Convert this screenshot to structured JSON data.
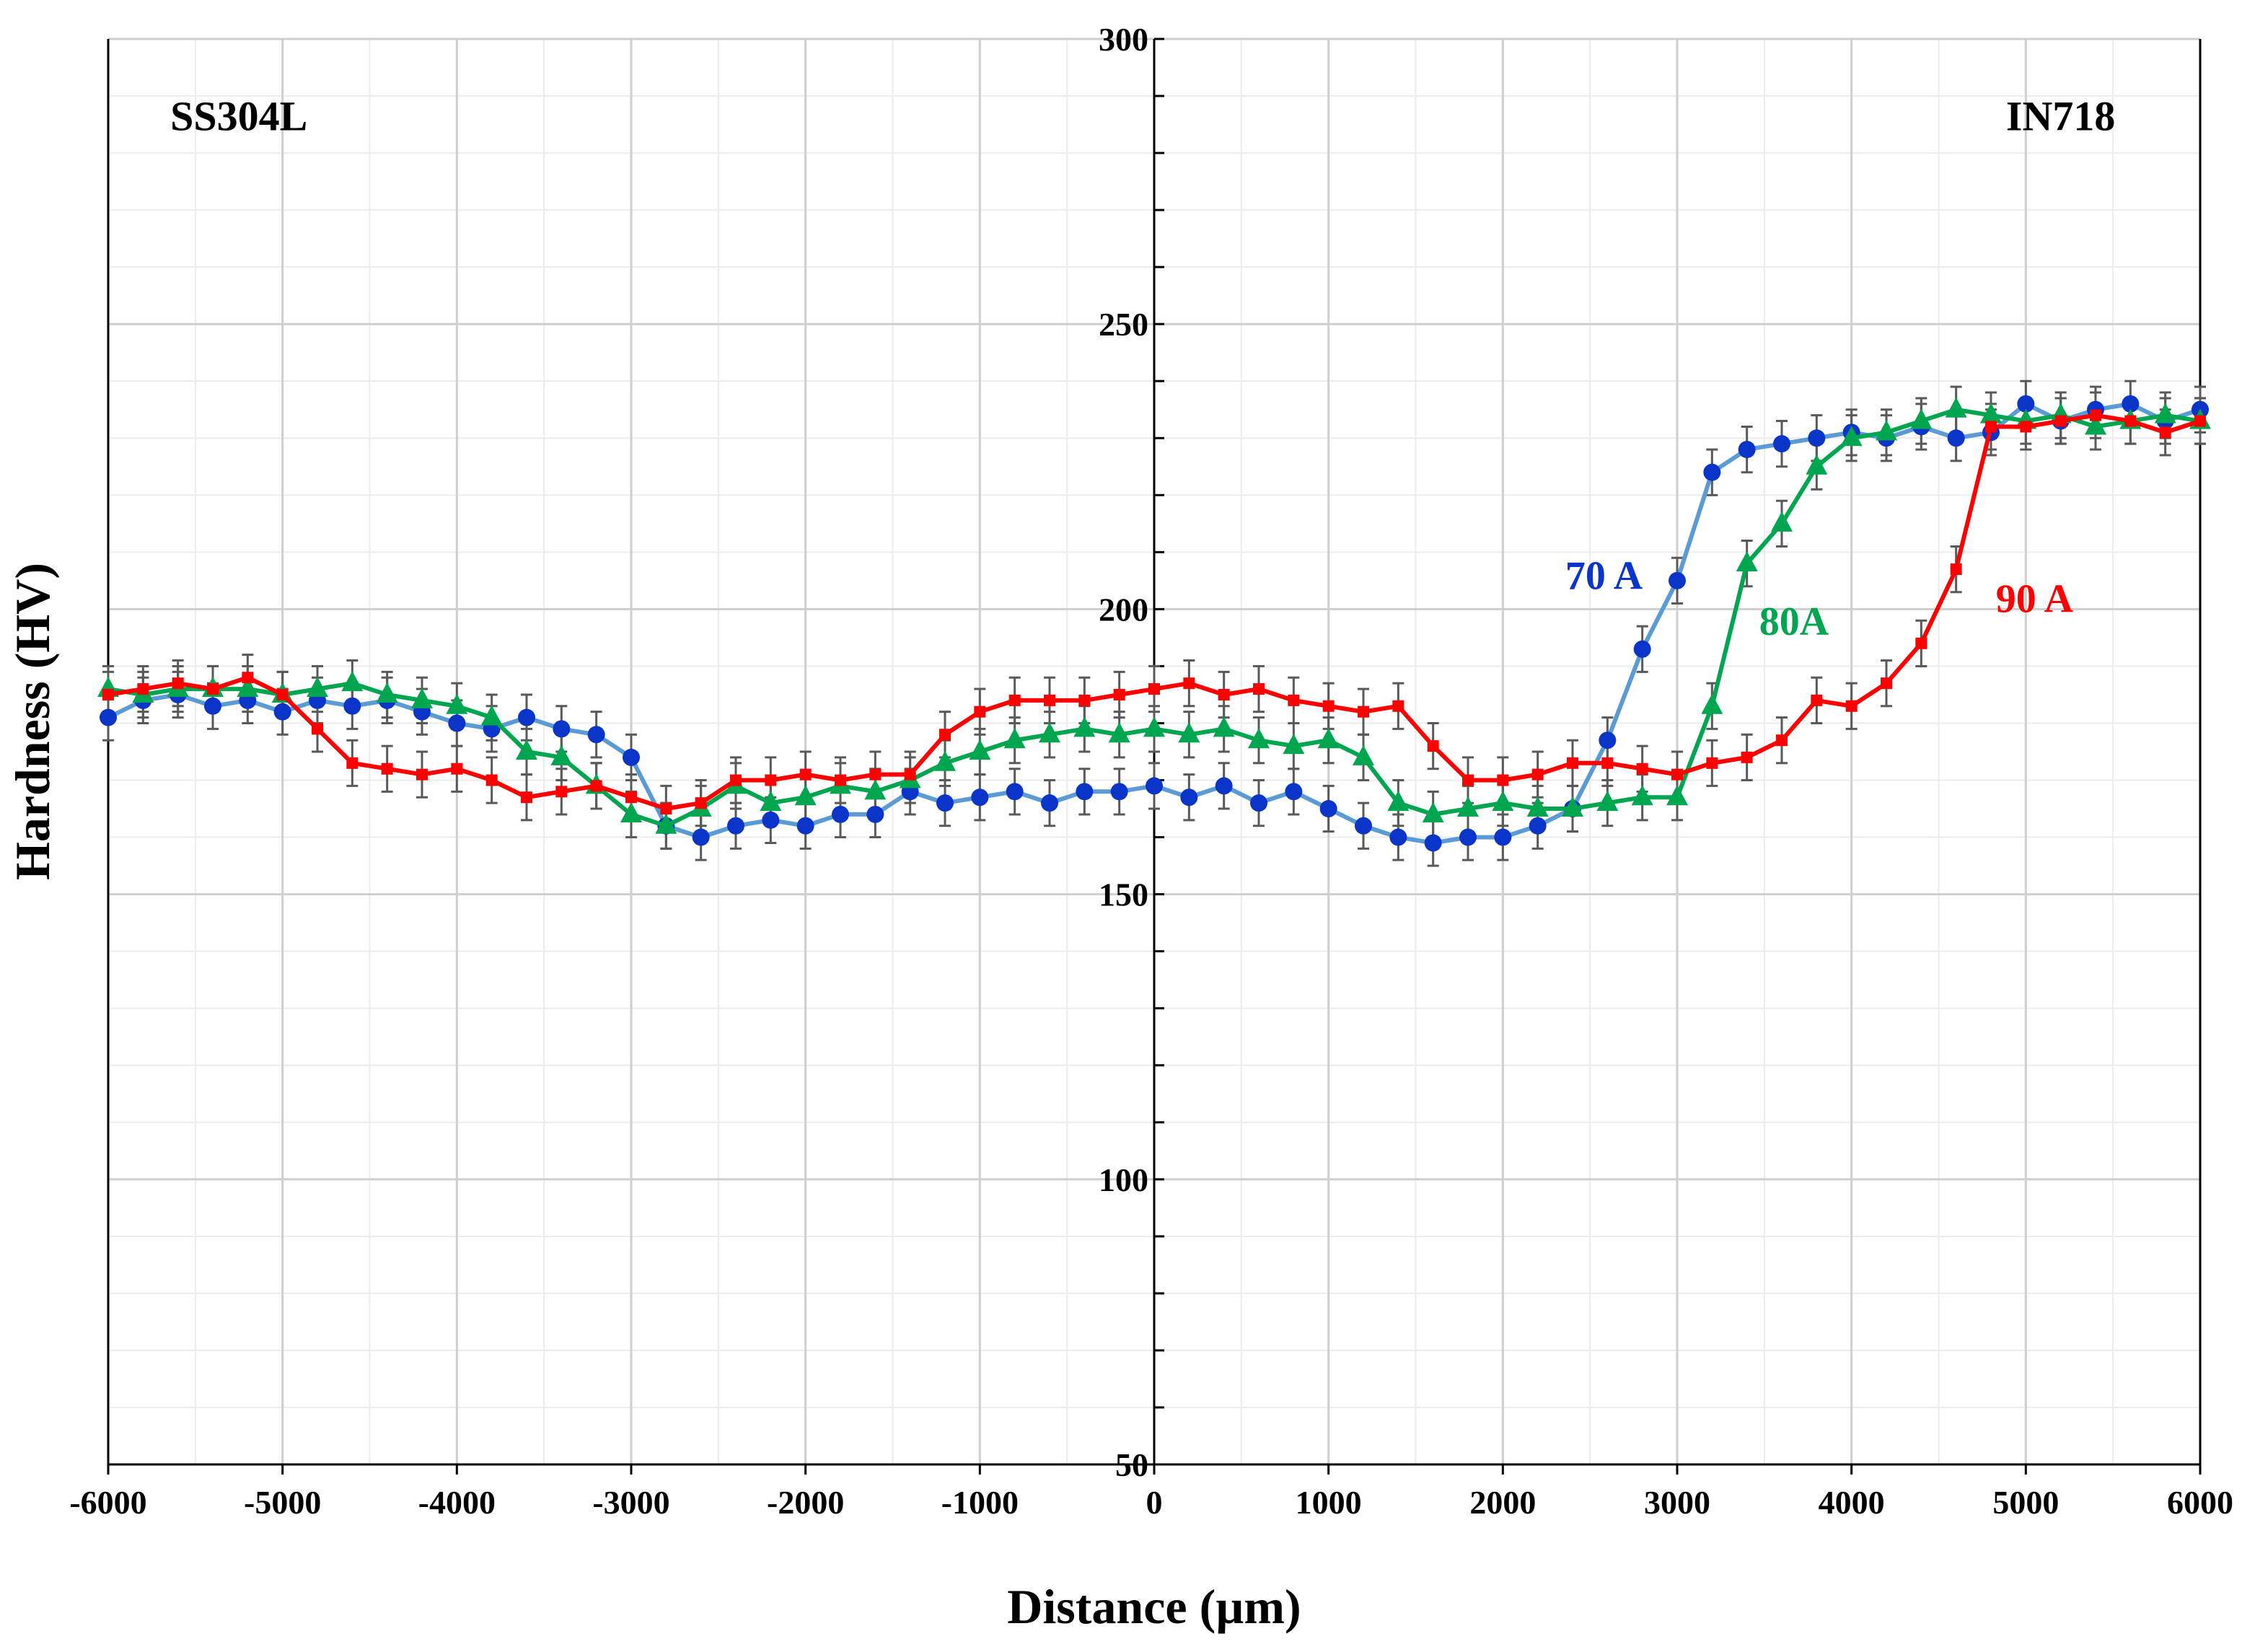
{
  "chart_data": {
    "type": "line",
    "title": "",
    "xlabel": "Distance (µm)",
    "ylabel": "Hardness (HV)",
    "xlim": [
      -6000,
      6000
    ],
    "ylim": [
      50,
      300
    ],
    "x_ticks": [
      -6000,
      -5000,
      -4000,
      -3000,
      -2000,
      -1000,
      0,
      1000,
      2000,
      3000,
      4000,
      5000,
      6000
    ],
    "y_ticks": [
      50,
      100,
      150,
      200,
      250,
      300
    ],
    "grid": true,
    "annotations": [
      {
        "id": "ss304l",
        "text": "SS304L",
        "x": -5250,
        "y": 284,
        "color": "#000000"
      },
      {
        "id": "in718",
        "text": "IN718",
        "x": 5200,
        "y": 284,
        "color": "#000000"
      }
    ],
    "x": [
      -6000,
      -5800,
      -5600,
      -5400,
      -5200,
      -5000,
      -4800,
      -4600,
      -4400,
      -4200,
      -4000,
      -3800,
      -3600,
      -3400,
      -3200,
      -3000,
      -2800,
      -2600,
      -2400,
      -2200,
      -2000,
      -1800,
      -1600,
      -1400,
      -1200,
      -1000,
      -800,
      -600,
      -400,
      -200,
      0,
      200,
      400,
      600,
      800,
      1000,
      1200,
      1400,
      1600,
      1800,
      2000,
      2200,
      2400,
      2600,
      2800,
      3000,
      3200,
      3400,
      3600,
      3800,
      4000,
      4200,
      4400,
      4600,
      4800,
      5000,
      5200,
      5400,
      5600,
      5800,
      6000
    ],
    "series": [
      {
        "name": "70 A",
        "label_text": "70 A",
        "label_x": 2580,
        "label_y": 203.5,
        "color": "#0a35c8",
        "line_color": "#5b9bd5",
        "marker": "circle",
        "values": [
          181,
          184,
          185,
          183,
          184,
          182,
          184,
          183,
          184,
          182,
          180,
          179,
          181,
          179,
          178,
          174,
          162,
          160,
          162,
          163,
          162,
          164,
          164,
          168,
          166,
          167,
          168,
          166,
          168,
          168,
          169,
          167,
          169,
          166,
          168,
          165,
          162,
          160,
          159,
          160,
          160,
          162,
          165,
          177,
          193,
          205,
          224,
          228,
          229,
          230,
          231,
          230,
          232,
          230,
          231,
          236,
          233,
          235,
          236,
          233,
          235
        ]
      },
      {
        "name": "80A",
        "label_text": "80A",
        "label_x": 3670,
        "label_y": 195.5,
        "color": "#00a550",
        "line_color": "#00a550",
        "marker": "triangle",
        "values": [
          186,
          185,
          186,
          186,
          186,
          185,
          186,
          187,
          185,
          184,
          183,
          181,
          175,
          174,
          169,
          164,
          162,
          165,
          169,
          166,
          167,
          169,
          168,
          170,
          173,
          175,
          177,
          178,
          179,
          178,
          179,
          178,
          179,
          177,
          176,
          177,
          174,
          166,
          164,
          165,
          166,
          165,
          165,
          166,
          167,
          167,
          183,
          208,
          215,
          225,
          230,
          231,
          233,
          235,
          234,
          233,
          234,
          232,
          233,
          234,
          233
        ]
      },
      {
        "name": "90 A",
        "label_text": "90 A",
        "label_x": 5050,
        "label_y": 199.5,
        "color": "#ff0000",
        "line_color": "#ff0000",
        "marker": "square",
        "values": [
          185,
          186,
          187,
          186,
          188,
          185,
          179,
          173,
          172,
          171,
          172,
          170,
          167,
          168,
          169,
          167,
          165,
          166,
          170,
          170,
          171,
          170,
          171,
          171,
          178,
          182,
          184,
          184,
          184,
          185,
          186,
          187,
          185,
          186,
          184,
          183,
          182,
          183,
          176,
          170,
          170,
          171,
          173,
          173,
          172,
          171,
          173,
          174,
          177,
          184,
          183,
          187,
          194,
          207,
          232,
          232,
          233,
          234,
          233,
          231,
          233
        ]
      }
    ],
    "error_bar_half_width": 4
  }
}
